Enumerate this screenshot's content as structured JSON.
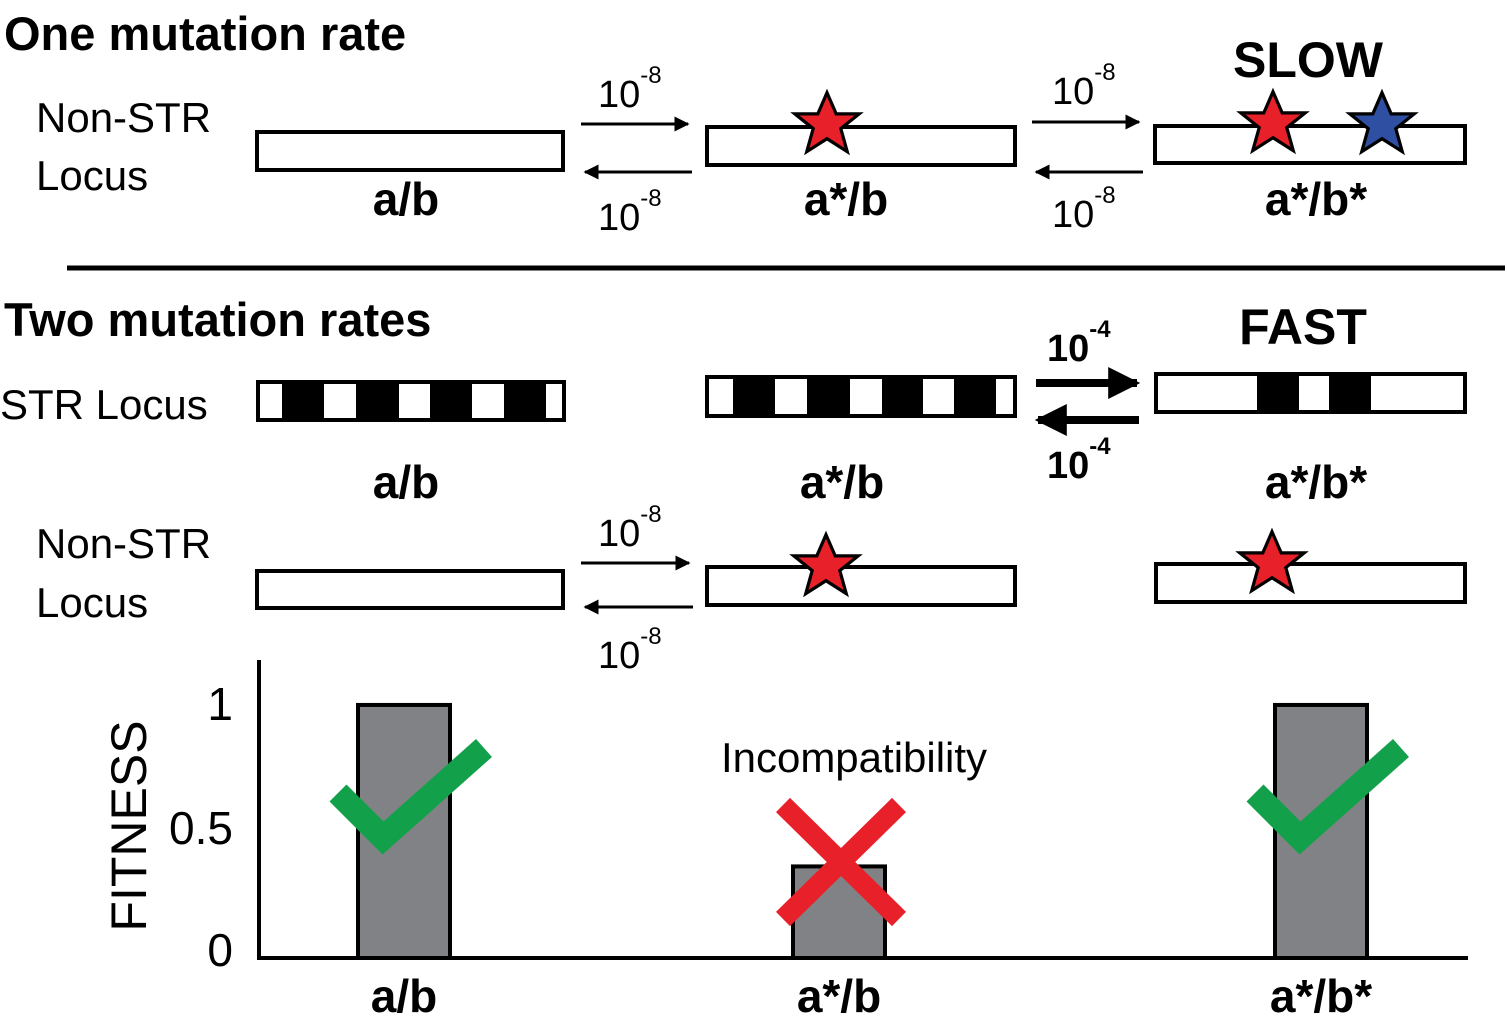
{
  "section_one": {
    "title": "One mutation rate",
    "locus_label_line1": "Non-STR",
    "locus_label_line2": "Locus",
    "genotypes": [
      "a/b",
      "a*/b",
      "a*/b*"
    ],
    "rate_base": "10",
    "rate_exp": "-8",
    "speed_label": "SLOW"
  },
  "section_two": {
    "title": "Two mutation rates",
    "str_label": "STR Locus",
    "genotypes": [
      "a/b",
      "a*/b",
      "a*/b*"
    ],
    "str_rate_base": "10",
    "str_rate_exp": "-4",
    "speed_label": "FAST",
    "nonstr_label_line1": "Non-STR",
    "nonstr_label_line2": "Locus",
    "nonstr_rate_base": "10",
    "nonstr_rate_exp": "-8"
  },
  "colors": {
    "star_red": "#e8202a",
    "star_blue": "#2f4fa2",
    "check_green": "#12a04a",
    "cross_red": "#e8202a",
    "bar_gray": "#808285"
  },
  "chart_data": {
    "type": "bar",
    "categories": [
      "a/b",
      "a*/b",
      "a*/b*"
    ],
    "values": [
      1.05,
      0.38,
      1.05
    ],
    "ylabel": "FITNESS",
    "yticks": [
      "0",
      "0.5",
      "1"
    ],
    "ylim": [
      0,
      1.1
    ],
    "marks": [
      "check-icon",
      "cross-icon",
      "check-icon"
    ],
    "annotation": "Incompatibility"
  }
}
